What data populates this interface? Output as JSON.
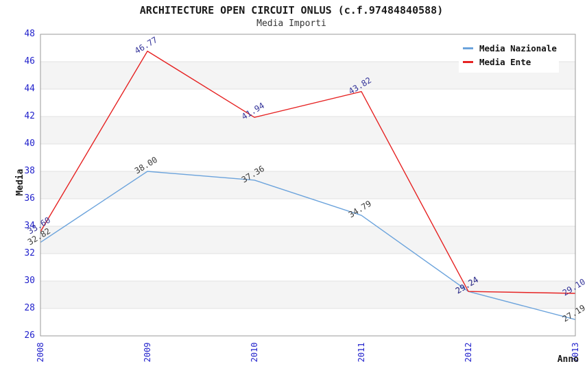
{
  "chart_data": {
    "type": "line",
    "title": "ARCHITECTURE OPEN CIRCUIT ONLUS (c.f.97484840588)",
    "subtitle": "Media Importi",
    "xlabel": "Anno",
    "ylabel": "Media",
    "categories": [
      2008,
      2009,
      2010,
      2011,
      2012,
      2013
    ],
    "series": [
      {
        "name": "Media Nazionale",
        "color": "#6BA3DC",
        "label_color_class": "pl-blue",
        "values": [
          32.82,
          38.0,
          37.36,
          34.79,
          29.24,
          27.19
        ],
        "labels": [
          "32.82",
          "38.00",
          "37.36",
          "34.79",
          "29.24",
          "27.19"
        ]
      },
      {
        "name": "Media Ente",
        "color": "#E62222",
        "label_color_class": "pl-red",
        "values": [
          33.6,
          46.77,
          41.94,
          43.82,
          29.24,
          29.1
        ],
        "labels": [
          "33.60",
          "46.77",
          "41.94",
          "43.82",
          "29.24",
          "29.10"
        ]
      }
    ],
    "ylim": [
      26,
      48
    ],
    "yticks": [
      26,
      28,
      30,
      32,
      34,
      36,
      38,
      40,
      42,
      44,
      46,
      48
    ],
    "x_range": [
      2008,
      2013
    ],
    "grid": "horizontal bands, alternating",
    "legend_position": "top-right",
    "colors": {
      "tick_label": "#2222CC",
      "band_gray": "#F4F4F4",
      "gridline": "#E2E2E2",
      "plot_border": "#9A9A9A",
      "background": "#FFFFFF"
    }
  }
}
